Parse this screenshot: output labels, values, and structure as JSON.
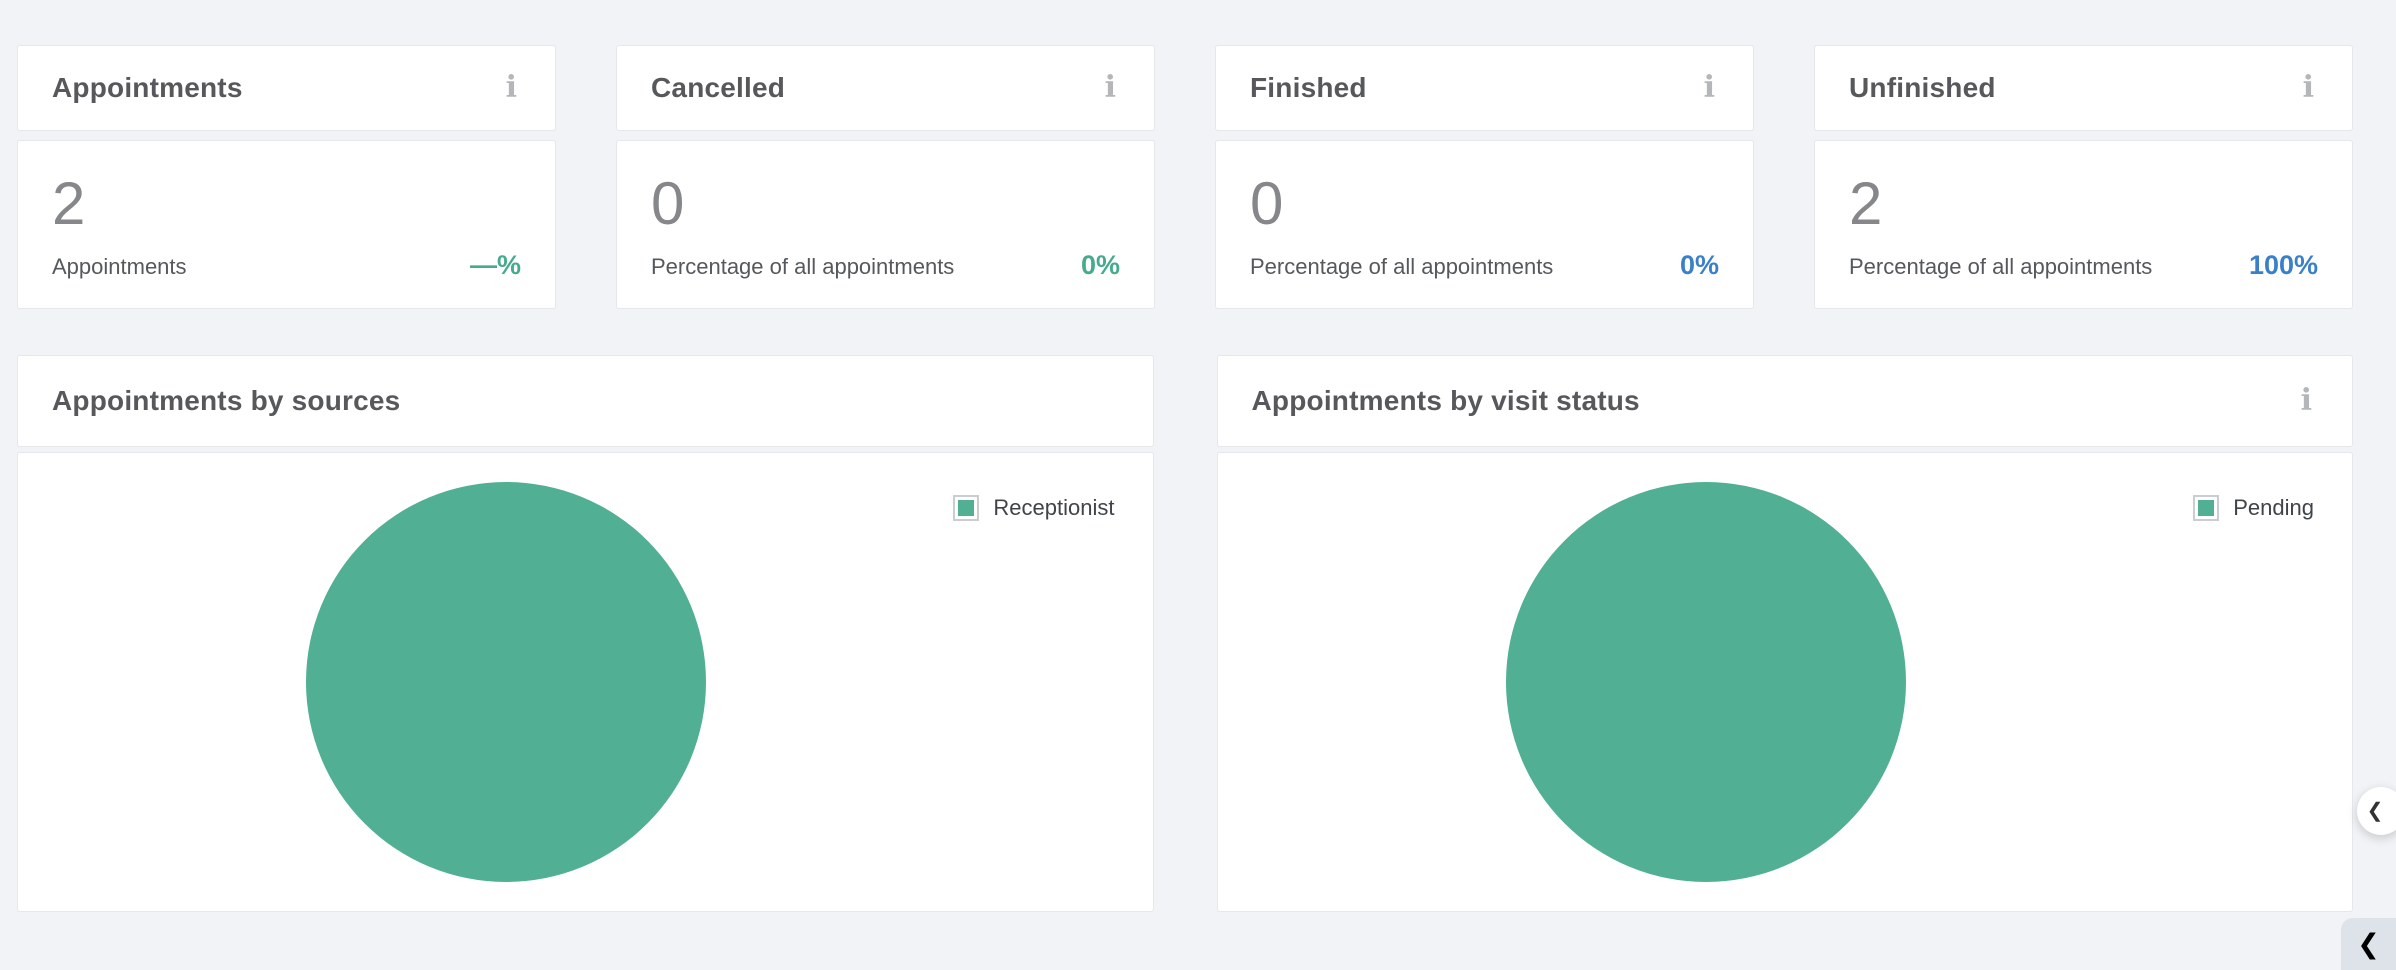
{
  "page": {
    "background": "#f1f3f7"
  },
  "icons": {
    "info": "i",
    "collapse_left": "❮"
  },
  "colors": {
    "positive_green": "#45ab8c",
    "info_blue": "#3a80c9",
    "pie_green": "#51af93"
  },
  "stat_cards": [
    {
      "title": "Appointments",
      "value": "2",
      "label": "Appointments",
      "percent": "—%",
      "percent_color": "#45ab8c"
    },
    {
      "title": "Cancelled",
      "value": "0",
      "label": "Percentage of all appointments",
      "percent": "0%",
      "percent_color": "#45ab8c"
    },
    {
      "title": "Finished",
      "value": "0",
      "label": "Percentage of all appointments",
      "percent": "0%",
      "percent_color": "#3a80c9"
    },
    {
      "title": "Unfinished",
      "value": "2",
      "label": "Percentage of all appointments",
      "percent": "100%",
      "percent_color": "#3a80c9"
    }
  ],
  "charts": [
    {
      "title": "Appointments by sources",
      "legend": [
        {
          "label": "Receptionist",
          "color": "#51af93"
        }
      ],
      "chart_data": {
        "type": "pie",
        "labels": [
          "Receptionist"
        ],
        "values": [
          2
        ],
        "percents": [
          100
        ],
        "colors": [
          "#51af93"
        ],
        "title": "Appointments by sources",
        "legend_position": "right"
      }
    },
    {
      "title": "Appointments by visit status",
      "legend": [
        {
          "label": "Pending",
          "color": "#51af93"
        }
      ],
      "chart_data": {
        "type": "pie",
        "labels": [
          "Pending"
        ],
        "values": [
          2
        ],
        "percents": [
          100
        ],
        "colors": [
          "#51af93"
        ],
        "title": "Appointments by visit status",
        "legend_position": "right"
      }
    }
  ],
  "buttons": {
    "collapse_panel_glyph": "❮",
    "dock_glyph": "❮"
  }
}
